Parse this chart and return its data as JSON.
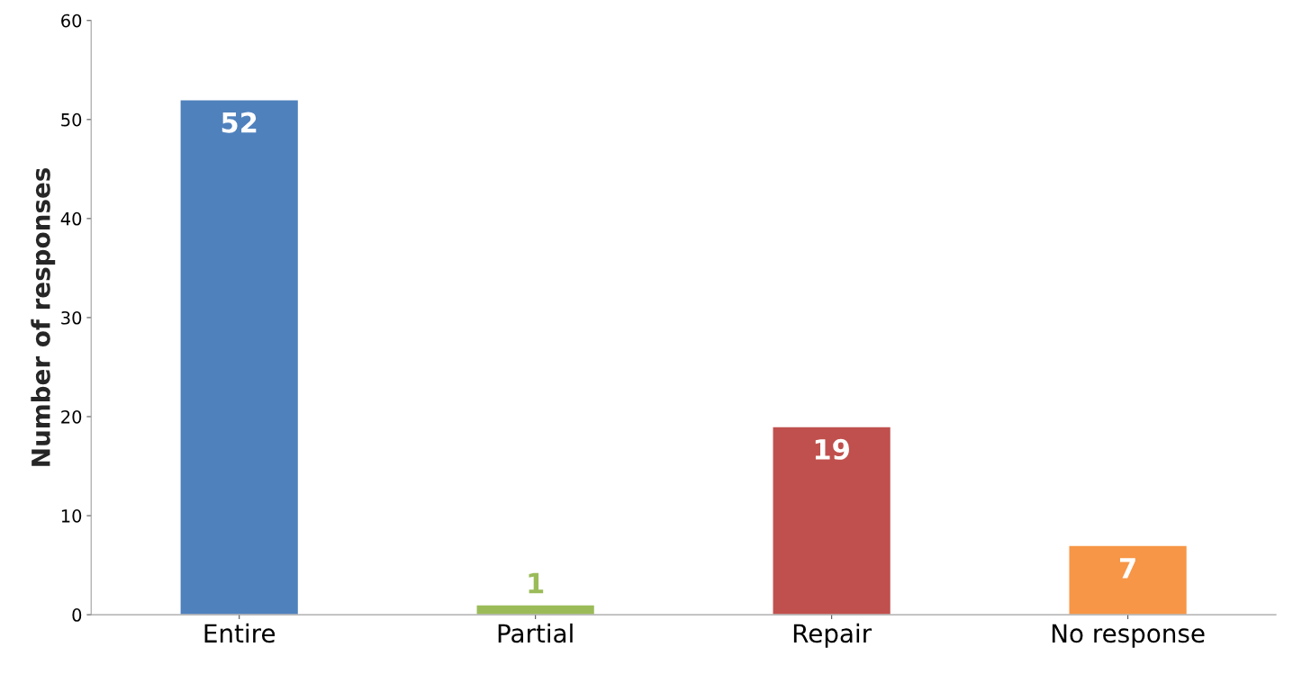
{
  "chart_data": {
    "type": "bar",
    "ylabel": "Number of responses",
    "categories": [
      "Entire",
      "Partial",
      "Repair",
      "No response"
    ],
    "values": [
      52,
      1,
      19,
      7
    ],
    "colors": [
      "#4f81bd",
      "#9bbb59",
      "#c0504d",
      "#f79646"
    ],
    "ylim": [
      0,
      60
    ],
    "yticks": [
      0,
      10,
      20,
      30,
      40,
      50,
      60
    ],
    "data_labels": true,
    "grid": false,
    "legend": false
  }
}
